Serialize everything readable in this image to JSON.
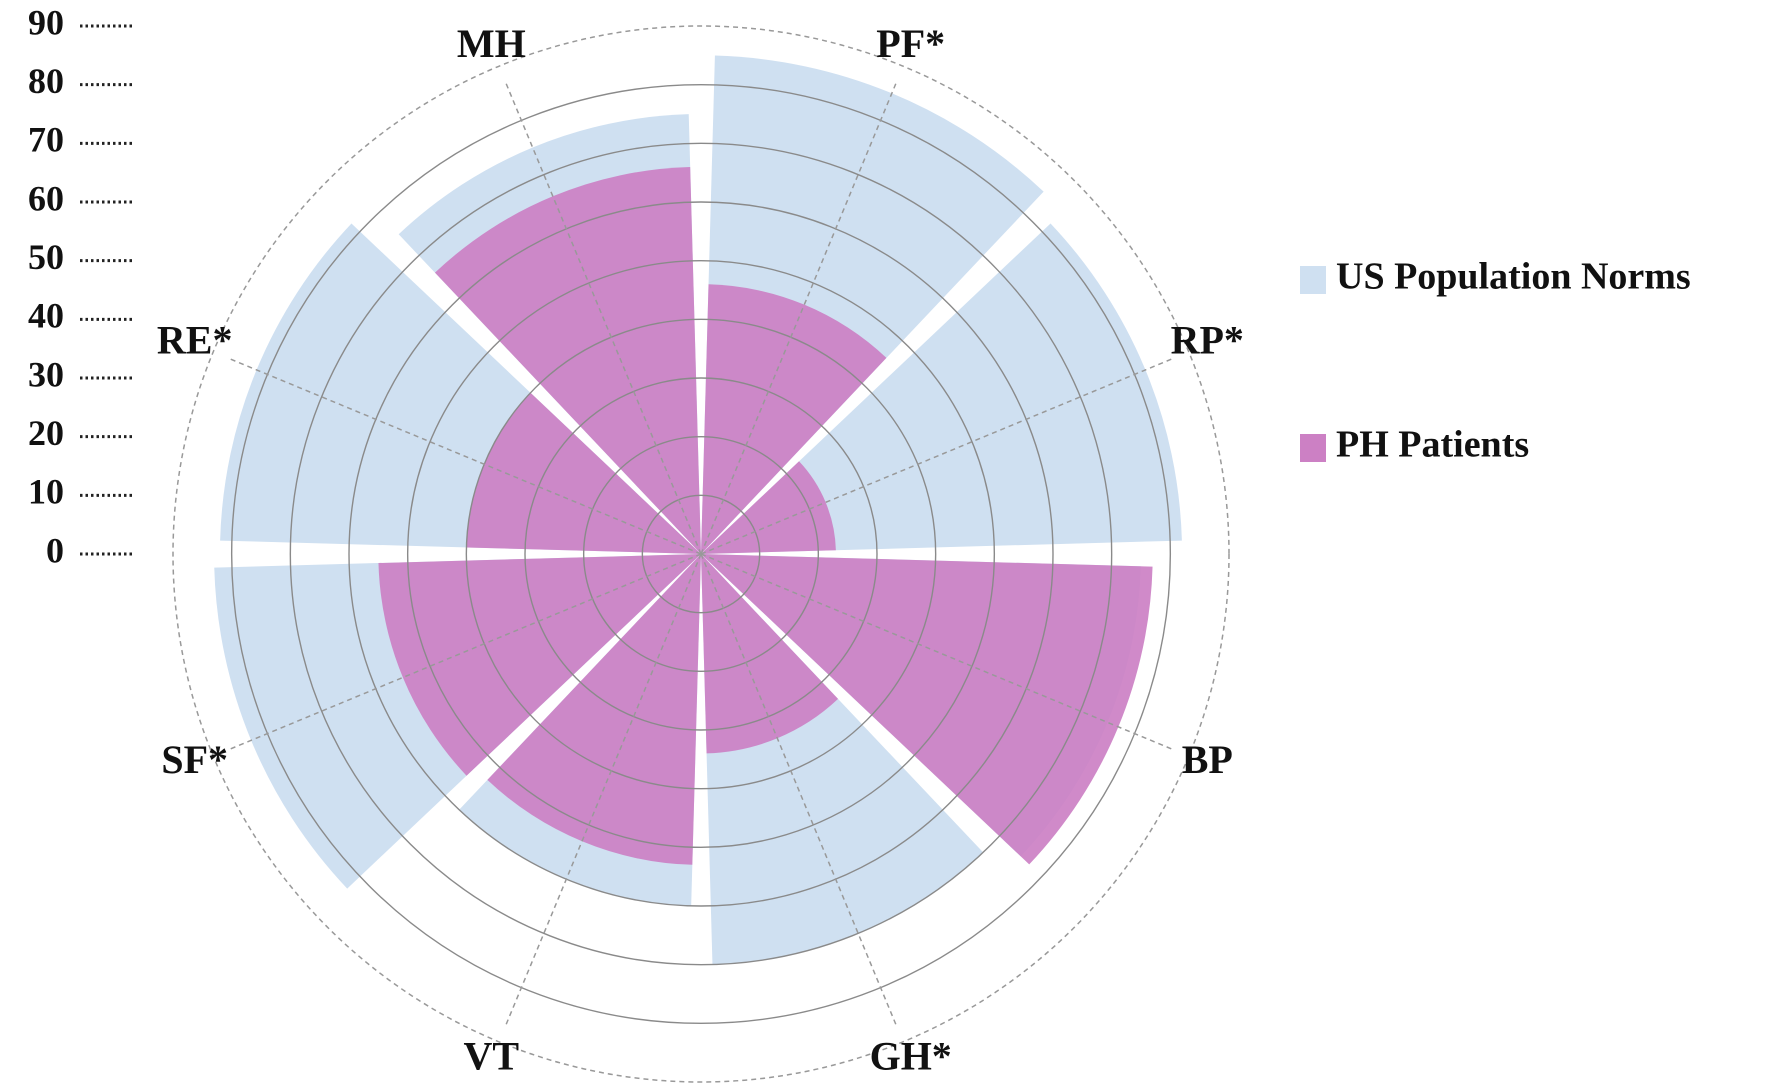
{
  "chart_data": {
    "type": "polar-area",
    "categories": [
      "PF*",
      "RP*",
      "BP",
      "GH*",
      "VT",
      "SF*",
      "RE*",
      "MH"
    ],
    "series": [
      {
        "name": "US Population Norms",
        "color": "#cfe0f1",
        "values": [
          85,
          82,
          75,
          70,
          60,
          83,
          82,
          75
        ]
      },
      {
        "name": "PH Patients",
        "color": "#cc80c4",
        "values": [
          46,
          23,
          77,
          34,
          53,
          55,
          40,
          66
        ]
      }
    ],
    "ylim": [
      0,
      90
    ],
    "yticks": [
      0,
      10,
      20,
      30,
      40,
      50,
      60,
      70,
      80,
      90
    ],
    "grid": true
  }
}
